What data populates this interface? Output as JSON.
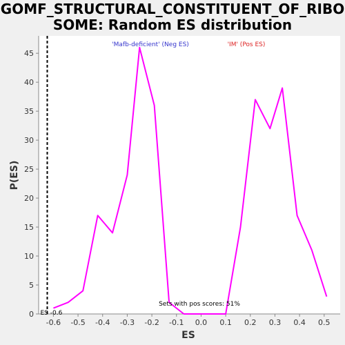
{
  "chart_data": {
    "type": "line",
    "title_lines": [
      "GOMF_STRUCTURAL_CONSTITUENT_OF_RIBO",
      "SOME: Random ES distribution"
    ],
    "xlabel": "ES",
    "ylabel": "P(ES)",
    "xlim": [
      -0.66,
      0.565
    ],
    "ylim": [
      0,
      48
    ],
    "x_ticks": [
      -0.6,
      -0.5,
      -0.4,
      -0.3,
      -0.2,
      -0.1,
      0.0,
      0.1,
      0.2,
      0.3,
      0.4,
      0.5
    ],
    "x_tick_labels": [
      "-0.6",
      "-0.5",
      "-0.4",
      "-0.3",
      "-0.2",
      "-0.1",
      "0.0",
      "0.1",
      "0.2",
      "0.3",
      "0.4",
      "0.5"
    ],
    "y_ticks": [
      0,
      5,
      10,
      15,
      20,
      25,
      30,
      35,
      40,
      45
    ],
    "y_tick_labels": [
      "0",
      "5",
      "10",
      "15",
      "20",
      "25",
      "30",
      "35",
      "40",
      "45"
    ],
    "series": [
      {
        "color": "#ff00ff",
        "x": [
          -0.6,
          -0.54,
          -0.48,
          -0.42,
          -0.36,
          -0.3,
          -0.25,
          -0.19,
          -0.13,
          -0.07,
          0.0,
          0.1,
          0.16,
          0.22,
          0.28,
          0.33,
          0.39,
          0.45,
          0.51
        ],
        "y": [
          1,
          2,
          4,
          17,
          14,
          24,
          46,
          36,
          2,
          0,
          0,
          0,
          15,
          37,
          32,
          39,
          17,
          11,
          3
        ]
      }
    ],
    "legend": [
      {
        "text": "'Mafb-deficient' (Neg ES)",
        "color": "#3333cc"
      },
      {
        "text": "'IM' (Pos ES)",
        "color": "#dd2222"
      }
    ],
    "es_marker": {
      "x": -0.625,
      "label": "ES -0.6"
    },
    "annotation": "Sets with pos scores: 51%",
    "grid": false
  }
}
